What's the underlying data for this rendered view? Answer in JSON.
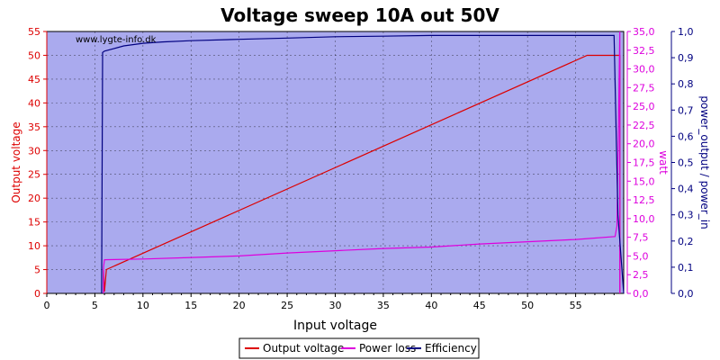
{
  "chart_data": {
    "type": "line",
    "title": "Voltage sweep 10A out 50V",
    "watermark": "www.lygte-info.dk",
    "xlabel": "Input voltage",
    "ylabel_left": "Output voltage",
    "ylabel_right1": "watt",
    "ylabel_right2": "power_output / power_in",
    "xlim": [
      0,
      60
    ],
    "ylim_left": [
      0,
      55
    ],
    "ylim_right1": [
      0,
      35
    ],
    "ylim_right2": [
      0,
      1
    ],
    "x_ticks": [
      "0",
      "5",
      "10",
      "15",
      "20",
      "25",
      "30",
      "35",
      "40",
      "45",
      "50",
      "55"
    ],
    "y_left_ticks": [
      "0",
      "5",
      "10",
      "15",
      "20",
      "25",
      "30",
      "35",
      "40",
      "45",
      "50",
      "55"
    ],
    "y_right1_ticks": [
      "0,0",
      "2,5",
      "5,0",
      "7,5",
      "10,0",
      "12,5",
      "15,0",
      "17,5",
      "20,0",
      "22,5",
      "25,0",
      "27,5",
      "30,0",
      "32,5",
      "35,0"
    ],
    "y_right2_ticks": [
      "0,0",
      "0,1",
      "0,2",
      "0,3",
      "0,4",
      "0,5",
      "0,6",
      "0,7",
      "0,8",
      "0,9",
      "1,0"
    ],
    "grid": true,
    "legend_position": "bottom",
    "colors": {
      "plot_bg": "#aaaaee",
      "output_voltage": "#dd0000",
      "power_loss": "#dd00dd",
      "efficiency": "#000080",
      "left_axis": "#dd0000",
      "right1_axis": "#dd00dd",
      "right2_axis": "#000080"
    },
    "series": [
      {
        "name": "Output voltage",
        "axis": "left",
        "color": "#dd0000",
        "x": [
          5.9,
          5.9,
          6.0,
          6.2,
          56.2,
          59.6,
          59.6
        ],
        "y": [
          0,
          4.9,
          0.4,
          5.0,
          50.0,
          50.0,
          0
        ]
      },
      {
        "name": "Power loss",
        "axis": "right1",
        "color": "#dd00dd",
        "x": [
          5.9,
          5.9,
          6.0,
          10,
          15,
          20,
          25,
          30,
          35,
          40,
          45,
          50,
          55,
          59.1,
          59.3,
          59.6,
          59.6
        ],
        "y": [
          0,
          3.5,
          4.5,
          4.6,
          4.8,
          5.0,
          5.4,
          5.7,
          6.0,
          6.2,
          6.6,
          6.9,
          7.2,
          7.6,
          9.0,
          35.0,
          0
        ]
      },
      {
        "name": "Efficiency",
        "axis": "right2",
        "color": "#000080",
        "x": [
          5.7,
          5.8,
          6,
          7,
          8,
          10,
          12,
          15,
          20,
          25,
          30,
          35,
          40,
          45,
          50,
          55,
          59.0,
          59.4,
          60.0
        ],
        "y": [
          0,
          0.92,
          0.925,
          0.935,
          0.945,
          0.955,
          0.96,
          0.965,
          0.97,
          0.975,
          0.98,
          0.982,
          0.985,
          0.985,
          0.985,
          0.985,
          0.985,
          0.3,
          0.0
        ]
      }
    ]
  }
}
